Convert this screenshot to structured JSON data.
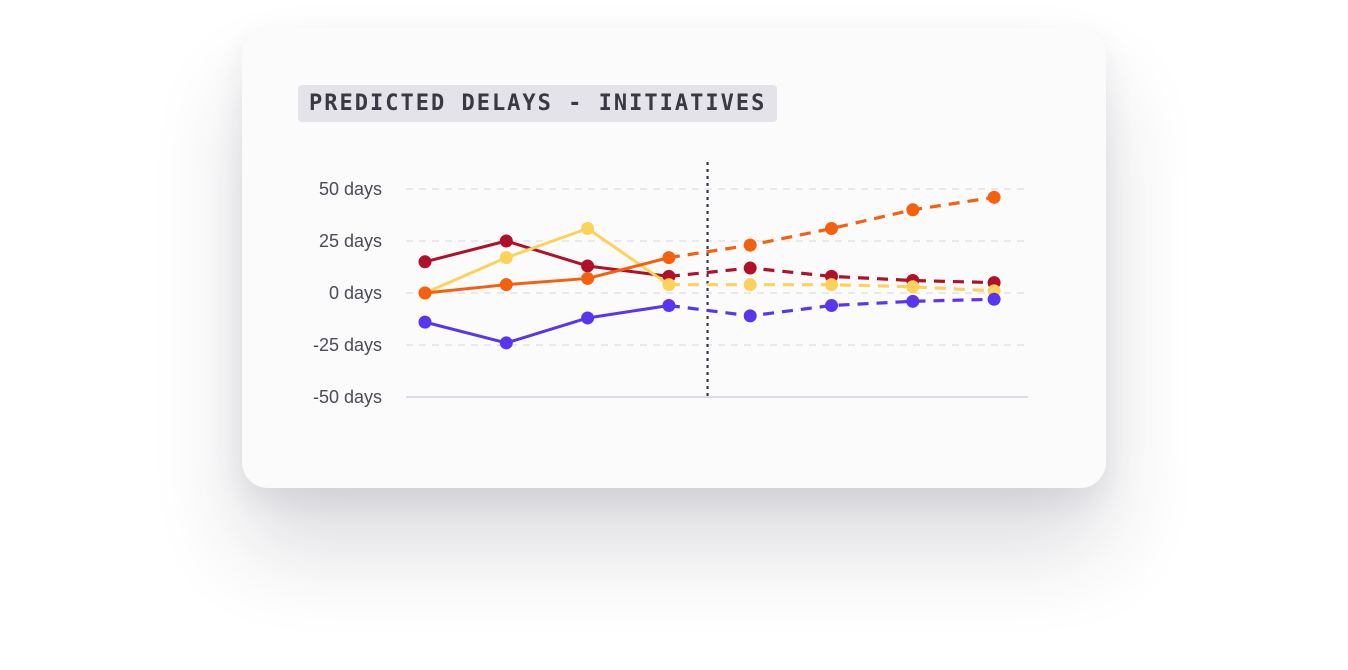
{
  "chart_data": {
    "type": "line",
    "title": "PREDICTED DELAYS - INITIATIVES",
    "y_unit": "days",
    "ylim": [
      -50,
      50
    ],
    "y_ticks": [
      50,
      25,
      0,
      -25,
      -50
    ],
    "y_tick_labels": [
      "50 days",
      "25 days",
      "0 days",
      "-25 days",
      "-50 days"
    ],
    "x": [
      1,
      2,
      3,
      4,
      5,
      6,
      7,
      8
    ],
    "forecast_start_after_x": 4,
    "grid": true,
    "series": [
      {
        "color": "#b0102a",
        "values": [
          15,
          25,
          13,
          8,
          12,
          8,
          6,
          5
        ]
      },
      {
        "color": "#fdd25a",
        "values": [
          0,
          17,
          31,
          4,
          4,
          4,
          3,
          1
        ]
      },
      {
        "color": "#f5600f",
        "values": [
          0,
          4,
          7,
          17,
          23,
          31,
          40,
          46
        ]
      },
      {
        "color": "#5a35f0",
        "values": [
          -14,
          -24,
          -12,
          -6,
          -11,
          -6,
          -4,
          -3
        ]
      }
    ]
  }
}
